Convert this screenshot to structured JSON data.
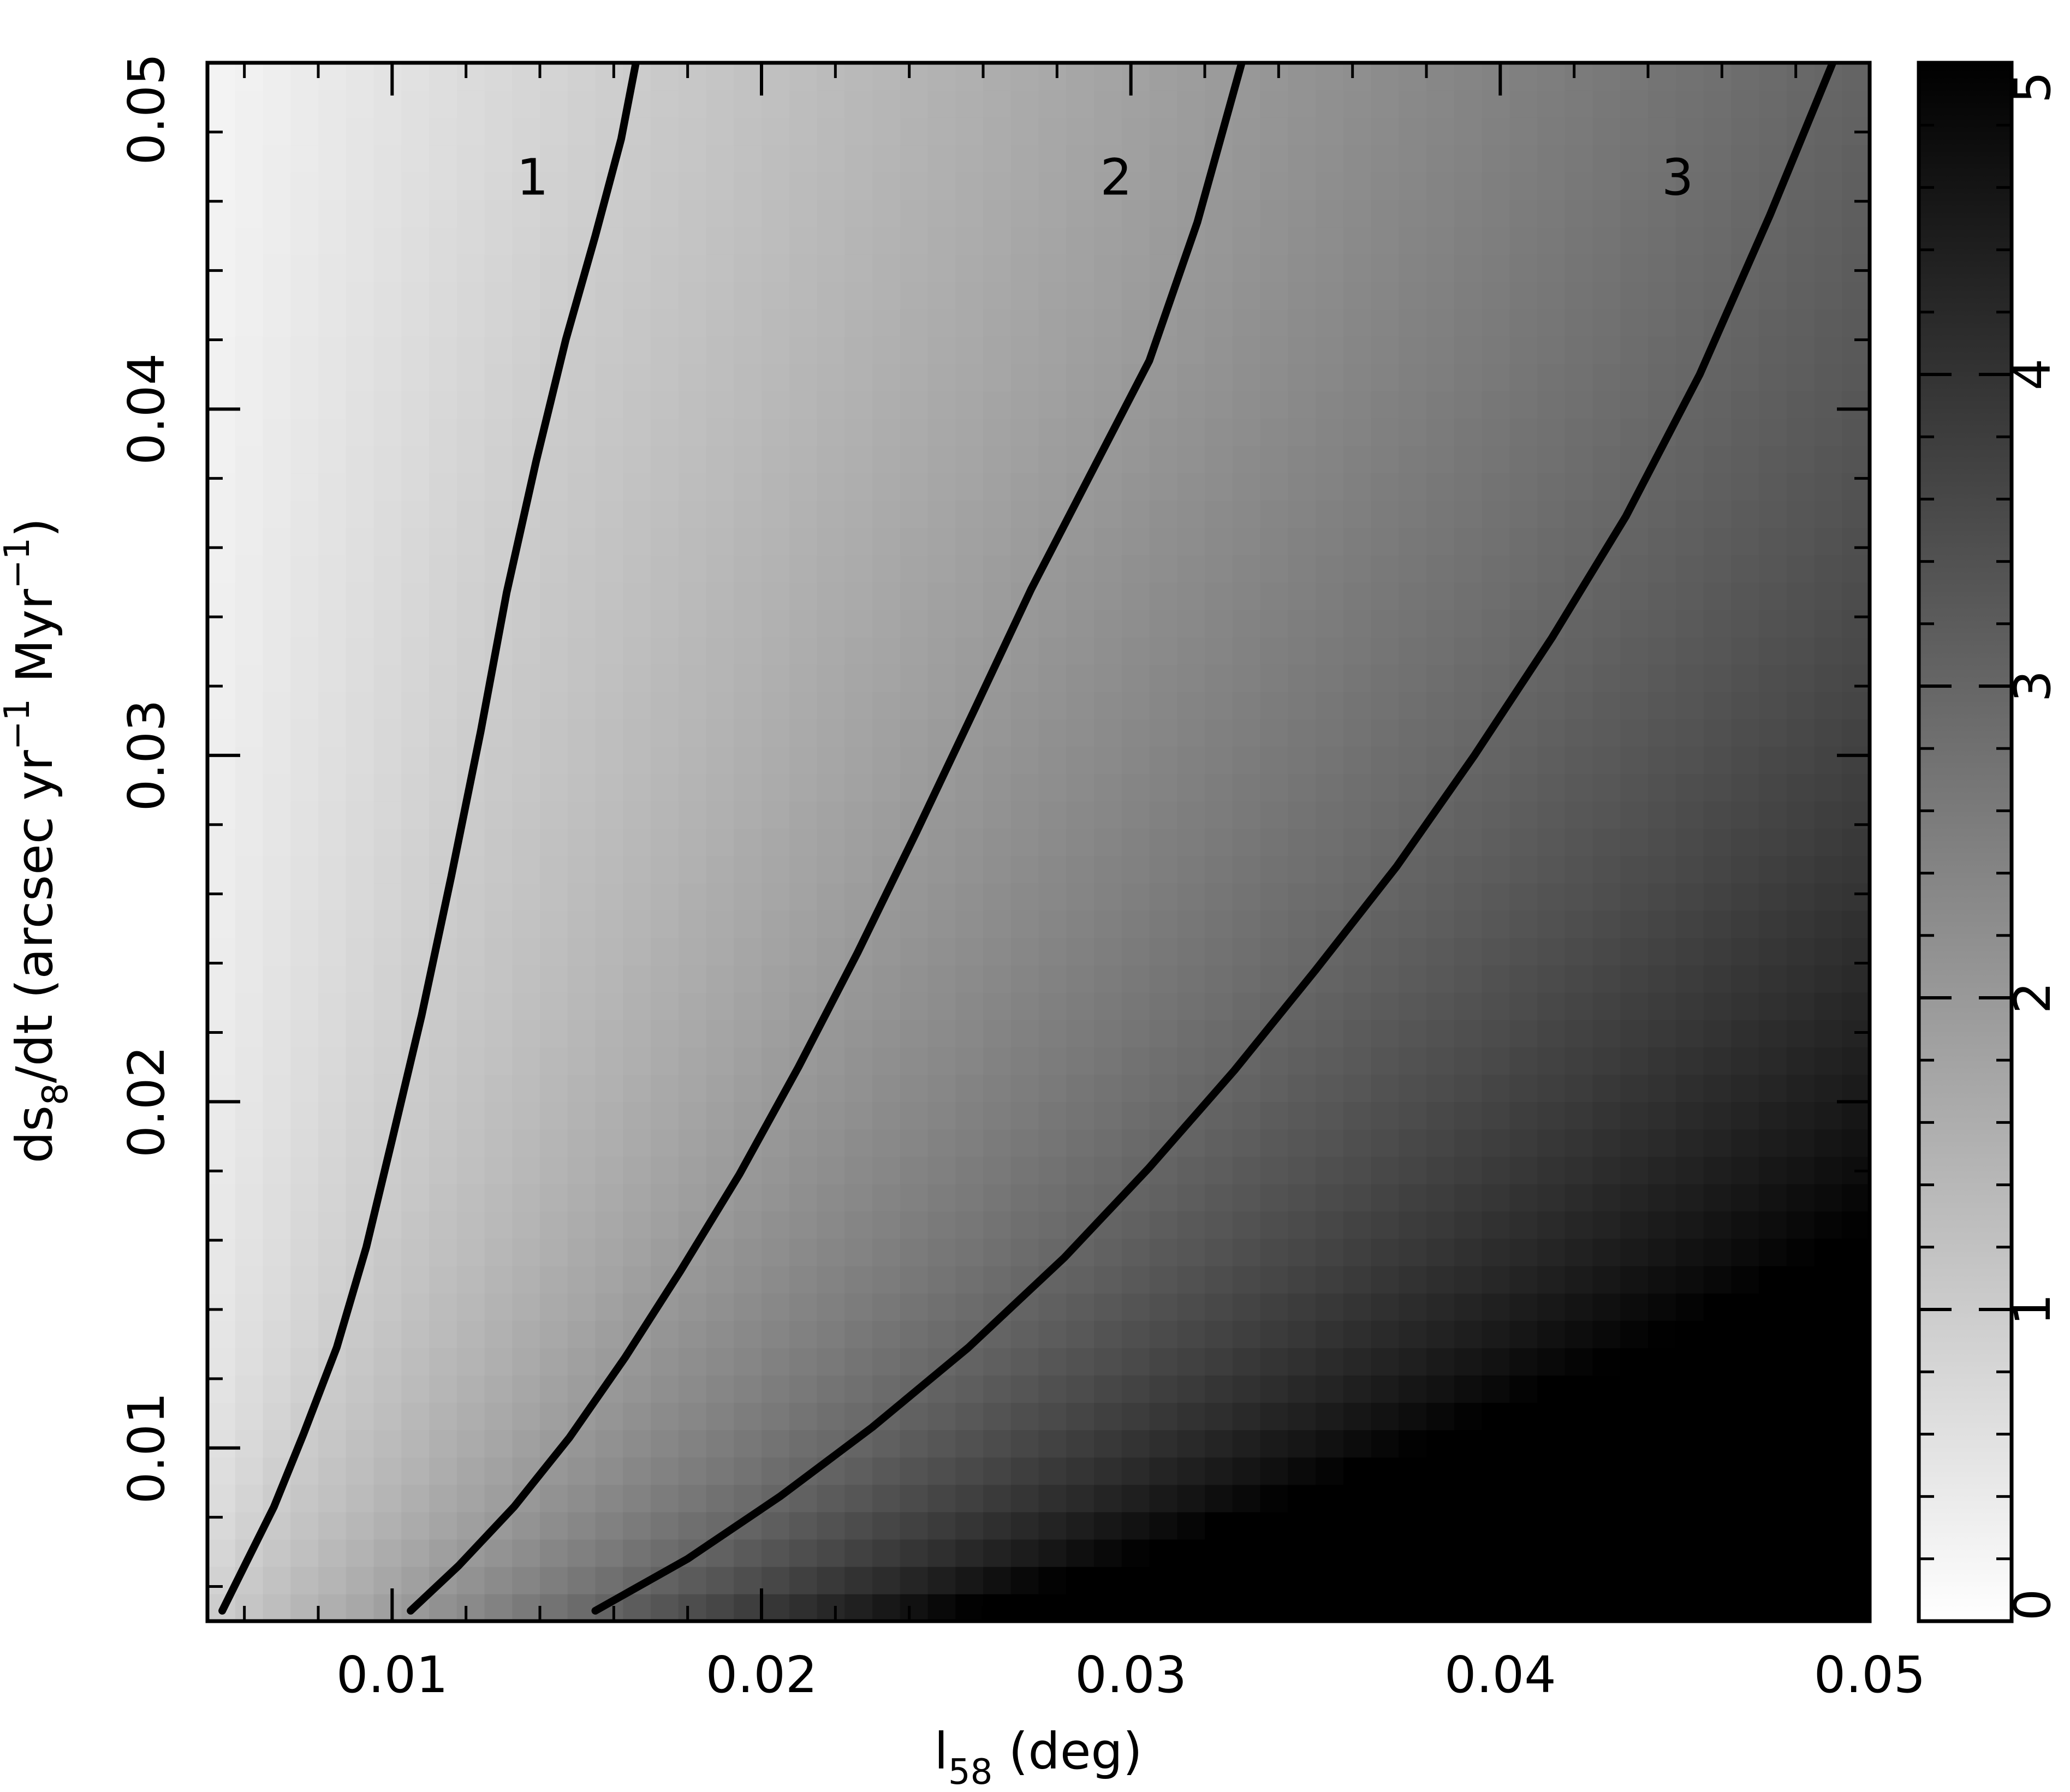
{
  "chart_data": {
    "type": "heatmap",
    "colormap": "grayscale-inverted",
    "colors": {
      "low": "#ffffff",
      "high": "#000000",
      "contour": "#000000",
      "frame": "#000000"
    },
    "xlabel": {
      "base": "l",
      "sub": "58",
      "rest": " (deg)"
    },
    "ylabel": {
      "base": "ds",
      "sub": "8",
      "mid1": "/dt (arcsec yr",
      "sup1": "−1",
      "mid2": " Myr",
      "sup2": "−1",
      "end": ")"
    },
    "xlim": [
      0.005,
      0.05
    ],
    "ylim": [
      0.005,
      0.05
    ],
    "x_ticks": [
      {
        "value": 0.01,
        "label": "0.01"
      },
      {
        "value": 0.02,
        "label": "0.02"
      },
      {
        "value": 0.03,
        "label": "0.03"
      },
      {
        "value": 0.04,
        "label": "0.04"
      },
      {
        "value": 0.05,
        "label": "0.05"
      }
    ],
    "y_ticks": [
      {
        "value": 0.01,
        "label": "0.01"
      },
      {
        "value": 0.02,
        "label": "0.02"
      },
      {
        "value": 0.03,
        "label": "0.03"
      },
      {
        "value": 0.04,
        "label": "0.04"
      },
      {
        "value": 0.05,
        "label": "0.05"
      }
    ],
    "minor_tick_step": 0.002,
    "colorbar": {
      "range": [
        0,
        5
      ],
      "ticks": [
        {
          "value": 0,
          "label": "0"
        },
        {
          "value": 1,
          "label": "1"
        },
        {
          "value": 2,
          "label": "2"
        },
        {
          "value": 3,
          "label": "3"
        },
        {
          "value": 4,
          "label": "4"
        },
        {
          "value": 5,
          "label": "5"
        }
      ],
      "minor_step": 0.2
    },
    "contours": [
      {
        "level": 1,
        "label": "1",
        "label_at": {
          "x": 0.0138,
          "y": 0.0467
        },
        "points": [
          [
            0.0054,
            0.0053
          ],
          [
            0.0061,
            0.0068
          ],
          [
            0.0068,
            0.0083
          ],
          [
            0.0076,
            0.0104
          ],
          [
            0.0085,
            0.0129
          ],
          [
            0.0093,
            0.0158
          ],
          [
            0.01,
            0.0189
          ],
          [
            0.0108,
            0.0225
          ],
          [
            0.0116,
            0.0265
          ],
          [
            0.0124,
            0.0307
          ],
          [
            0.0131,
            0.0347
          ],
          [
            0.0139,
            0.0385
          ],
          [
            0.0147,
            0.042
          ],
          [
            0.0155,
            0.045
          ],
          [
            0.0162,
            0.0478
          ],
          [
            0.0166,
            0.05
          ]
        ]
      },
      {
        "level": 2,
        "label": "2",
        "label_at": {
          "x": 0.0296,
          "y": 0.0467
        },
        "points": [
          [
            0.0105,
            0.0053
          ],
          [
            0.0118,
            0.0066
          ],
          [
            0.0133,
            0.0083
          ],
          [
            0.0148,
            0.0103
          ],
          [
            0.0163,
            0.0126
          ],
          [
            0.0178,
            0.0151
          ],
          [
            0.0194,
            0.0179
          ],
          [
            0.021,
            0.021
          ],
          [
            0.0226,
            0.0243
          ],
          [
            0.0242,
            0.0278
          ],
          [
            0.0258,
            0.0314
          ],
          [
            0.0273,
            0.0348
          ],
          [
            0.0289,
            0.0381
          ],
          [
            0.0305,
            0.0414
          ],
          [
            0.0318,
            0.0454
          ],
          [
            0.033,
            0.05
          ]
        ]
      },
      {
        "level": 3,
        "label": "3",
        "label_at": {
          "x": 0.0448,
          "y": 0.0467
        },
        "points": [
          [
            0.0155,
            0.0053
          ],
          [
            0.018,
            0.0068
          ],
          [
            0.0205,
            0.0086
          ],
          [
            0.023,
            0.0106
          ],
          [
            0.0256,
            0.0129
          ],
          [
            0.0282,
            0.0155
          ],
          [
            0.0305,
            0.0181
          ],
          [
            0.0328,
            0.0209
          ],
          [
            0.035,
            0.0238
          ],
          [
            0.0372,
            0.0268
          ],
          [
            0.0393,
            0.03
          ],
          [
            0.0414,
            0.0334
          ],
          [
            0.0434,
            0.0369
          ],
          [
            0.0454,
            0.041
          ],
          [
            0.0473,
            0.0456
          ],
          [
            0.049,
            0.05
          ]
        ]
      }
    ]
  }
}
